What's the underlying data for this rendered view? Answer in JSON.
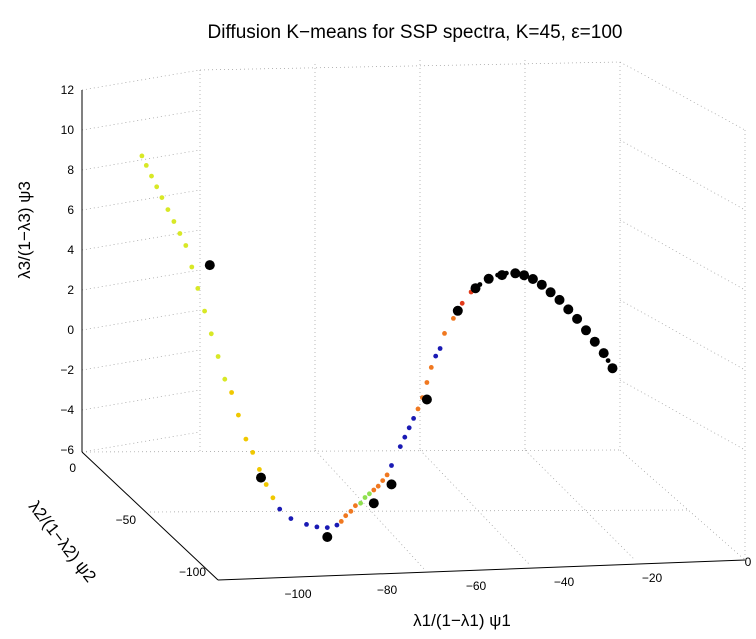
{
  "chart_data": {
    "type": "scatter",
    "projection": "3d",
    "title": "Diffusion K−means for SSP spectra, K=45, ε=100",
    "xlabel": "λ1/(1−λ1) ψ1",
    "ylabel": "λ2/(1−λ2) ψ2",
    "zlabel": "λ3/(1−λ3) ψ3",
    "x_ticks": [
      "−100",
      "−80",
      "−60",
      "−40",
      "−20",
      "0"
    ],
    "y_ticks": [
      "0",
      "−50",
      "−100"
    ],
    "z_ticks": [
      "12",
      "10",
      "8",
      "6",
      "4",
      "2",
      "0",
      "−2",
      "−4",
      "−6"
    ],
    "grid": true,
    "series": [
      {
        "color": "#d8e826",
        "points": [
          [
            -125,
            5,
            10
          ],
          [
            -124,
            5,
            9.5
          ],
          [
            -123,
            6,
            9
          ],
          [
            -122,
            7,
            8.5
          ],
          [
            -121,
            8,
            8
          ],
          [
            -120,
            10,
            7.5
          ],
          [
            -119,
            12,
            7
          ],
          [
            -118,
            14,
            6.5
          ],
          [
            -117,
            16,
            6
          ],
          [
            -116,
            18,
            5
          ],
          [
            -115,
            20,
            4
          ],
          [
            -114,
            23,
            3
          ],
          [
            -113,
            26,
            2
          ],
          [
            -112,
            29,
            1
          ],
          [
            -111,
            32,
            0
          ]
        ]
      },
      {
        "color": "#f0c800",
        "points": [
          [
            -110,
            35,
            -0.5
          ],
          [
            -109,
            38,
            -1.5
          ],
          [
            -108,
            42,
            -2.5
          ],
          [
            -107,
            45,
            -3
          ],
          [
            -106,
            48,
            -3.7
          ],
          [
            -105,
            51,
            -4.3
          ],
          [
            -104,
            54,
            -4.8
          ]
        ]
      },
      {
        "color": "#1a1ab4",
        "points": [
          [
            -103,
            57,
            -5.2
          ],
          [
            -101,
            60,
            -5.5
          ],
          [
            -98,
            63,
            -5.6
          ],
          [
            -96,
            65,
            -5.6
          ],
          [
            -94,
            67,
            -5.5
          ],
          [
            -92,
            68,
            -5.3
          ],
          [
            -80,
            70,
            -2
          ],
          [
            -78,
            70,
            -1
          ],
          [
            -77,
            70,
            -0.5
          ],
          [
            -76,
            70,
            0
          ],
          [
            -75,
            70,
            0.5
          ],
          [
            -70,
            70,
            3.8
          ],
          [
            -69,
            70,
            4.2
          ]
        ]
      },
      {
        "color": "#f07820",
        "points": [
          [
            -91,
            68,
            -5.1
          ],
          [
            -90,
            68,
            -4.8
          ],
          [
            -89,
            69,
            -4.5
          ],
          [
            -88,
            69,
            -4.2
          ],
          [
            -84,
            70,
            -3.3
          ],
          [
            -83,
            70,
            -3.1
          ],
          [
            -82,
            70,
            -2.8
          ],
          [
            -81,
            70,
            -2.5
          ],
          [
            -74,
            70,
            1
          ],
          [
            -73,
            70,
            1.6
          ],
          [
            -72,
            70,
            2.4
          ],
          [
            -71,
            70,
            3.2
          ],
          [
            -68,
            70,
            5
          ],
          [
            -66,
            70,
            5.8
          ]
        ]
      },
      {
        "color": "#90e050",
        "points": [
          [
            -87,
            70,
            -4
          ],
          [
            -86,
            70,
            -3.7
          ],
          [
            -85,
            70,
            -3.5
          ]
        ]
      },
      {
        "color": "#e23a1a",
        "points": [
          [
            -64,
            70,
            6.6
          ],
          [
            -62,
            70,
            7.2
          ]
        ]
      },
      {
        "color": "#000000",
        "points": [
          [
            -60,
            70,
            7.6
          ],
          [
            -58,
            70,
            7.9
          ],
          [
            -56,
            70,
            8.1
          ],
          [
            -54,
            70,
            8.2
          ],
          [
            -52,
            70,
            8.2
          ],
          [
            -50,
            70,
            8.1
          ],
          [
            -48,
            70,
            7.9
          ],
          [
            -46,
            70,
            7.6
          ],
          [
            -44,
            70,
            7.2
          ],
          [
            -42,
            70,
            6.8
          ],
          [
            -40,
            70,
            6.3
          ],
          [
            -38,
            70,
            5.8
          ],
          [
            -36,
            70,
            5.2
          ],
          [
            -34,
            70,
            4.6
          ],
          [
            -32,
            70,
            4.0
          ],
          [
            -31,
            70,
            3.6
          ],
          [
            -30,
            70,
            3.2
          ]
        ]
      }
    ],
    "centroids": [
      [
        -113,
        24,
        5.5
      ],
      [
        -106,
        50,
        -4
      ],
      [
        -94,
        67,
        -6
      ],
      [
        -84,
        70,
        -4
      ],
      [
        -80,
        70,
        -3
      ],
      [
        -72,
        70,
        1.5
      ],
      [
        -65,
        70,
        6.2
      ],
      [
        -61,
        70,
        7.4
      ],
      [
        -58,
        70,
        7.9
      ],
      [
        -55,
        70,
        8.1
      ],
      [
        -52,
        70,
        8.2
      ],
      [
        -50,
        70,
        8.1
      ],
      [
        -48,
        70,
        7.9
      ],
      [
        -46,
        70,
        7.6
      ],
      [
        -44,
        70,
        7.2
      ],
      [
        -42,
        70,
        6.8
      ],
      [
        -40,
        70,
        6.3
      ],
      [
        -38,
        70,
        5.8
      ],
      [
        -36,
        70,
        5.2
      ],
      [
        -34,
        70,
        4.6
      ],
      [
        -32,
        70,
        4.0
      ],
      [
        -30,
        70,
        3.2
      ]
    ]
  }
}
